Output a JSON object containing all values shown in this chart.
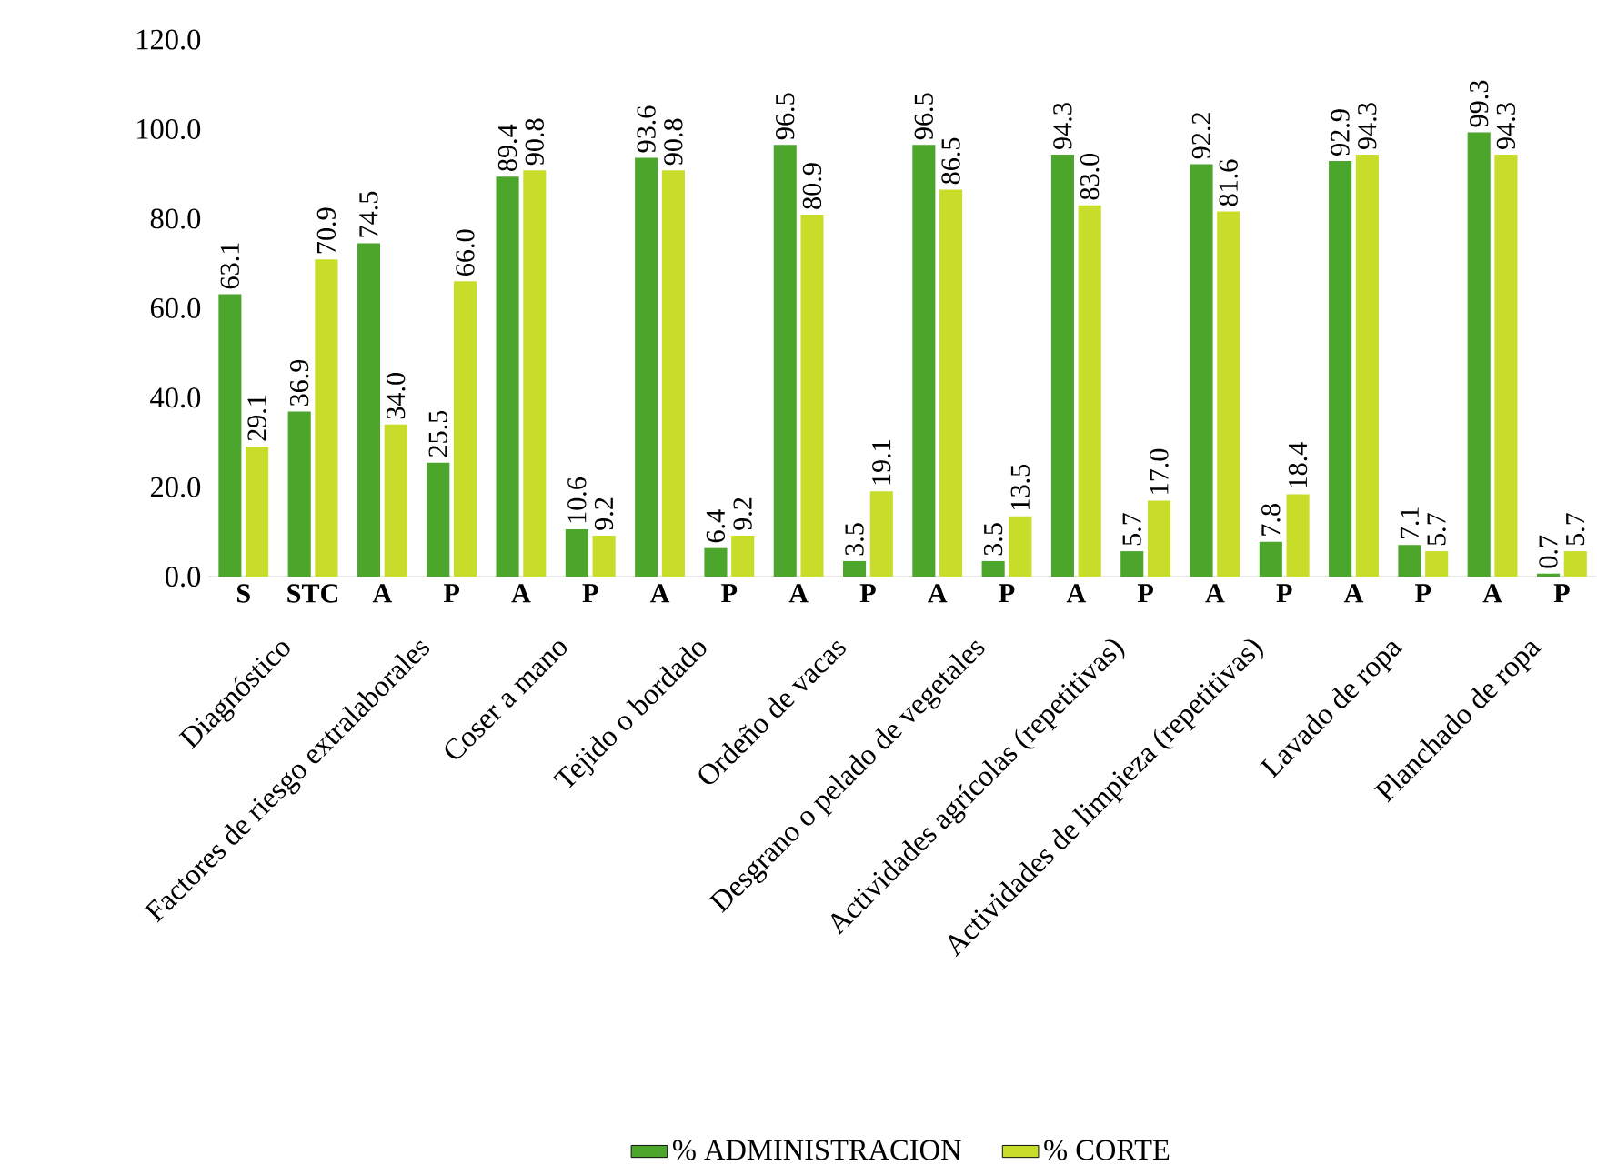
{
  "chart_data": {
    "type": "bar",
    "categories": [
      "S",
      "STC",
      "A",
      "P",
      "A",
      "P",
      "A",
      "P",
      "A",
      "P",
      "A",
      "P",
      "A",
      "P",
      "A",
      "P",
      "A",
      "P",
      "A",
      "P"
    ],
    "series": [
      {
        "name": "% ADMINISTRACION",
        "color": "#4ca62b",
        "values": [
          63.1,
          36.9,
          74.5,
          25.5,
          89.4,
          10.6,
          93.6,
          6.4,
          96.5,
          3.5,
          96.5,
          3.5,
          94.3,
          5.7,
          92.2,
          7.8,
          92.9,
          7.1,
          99.3,
          0.7
        ],
        "value_labels": [
          "63.1",
          "36.9",
          "74.5",
          "25.5",
          "89.4",
          "10.6",
          "93.6",
          "6.4",
          "96.5",
          "3.5",
          "96.5",
          "3.5",
          "94.3",
          "5.7",
          "92.2",
          "7.8",
          "92.9",
          "7.1",
          "99.3",
          "0.7"
        ]
      },
      {
        "name": "% CORTE",
        "color": "#c8dc2a",
        "values": [
          29.1,
          70.9,
          34.0,
          66.0,
          90.8,
          9.2,
          90.8,
          9.2,
          80.9,
          19.1,
          86.5,
          13.5,
          83.0,
          17.0,
          81.6,
          18.4,
          94.3,
          5.7,
          94.3,
          5.7
        ],
        "value_labels": [
          "29.1",
          "70.9",
          "34.0",
          "66.0",
          "90.8",
          "9.2",
          "90.8",
          "9.2",
          "80.9",
          "19.1",
          "86.5",
          "13.5",
          "83.0",
          "17.0",
          "81.6",
          "18.4",
          "94.3",
          "5.7",
          "94.3",
          "5.7"
        ]
      }
    ],
    "annotations": [
      "Diagnóstico",
      "Factores de riesgo extralaborales",
      "Coser a mano",
      "Tejido o bordado",
      "Ordeño de vacas",
      "Desgrano o pelado de vegetales",
      "Actividades agrícolas (repetitivas)",
      "Actividades de limpieza (repetitivas)",
      "Lavado de ropa",
      "Planchado de ropa"
    ],
    "ylim": [
      0,
      120
    ],
    "yticks": [
      {
        "value": 0,
        "label": "0.0"
      },
      {
        "value": 20,
        "label": "20.0"
      },
      {
        "value": 40,
        "label": "40.0"
      },
      {
        "value": 60,
        "label": "60.0"
      },
      {
        "value": 80,
        "label": "80.0"
      },
      {
        "value": 100,
        "label": "100.0"
      },
      {
        "value": 120,
        "label": "120.0"
      }
    ],
    "legend": "bottom",
    "grid": false
  }
}
